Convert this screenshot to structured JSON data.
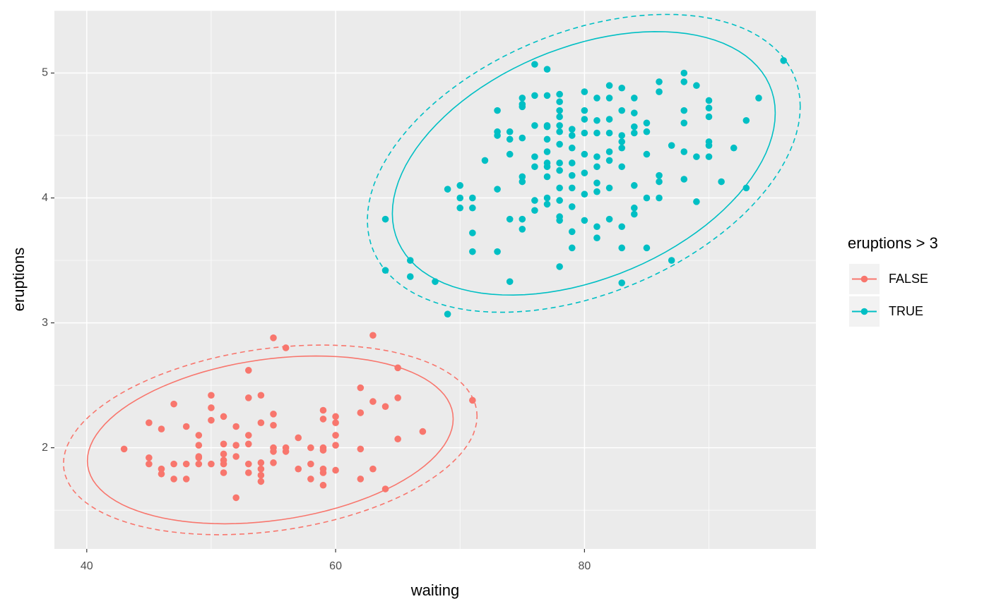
{
  "chart_data": {
    "type": "scatter",
    "x_label": "waiting",
    "y_label": "eruptions",
    "legend_title": "eruptions > 3",
    "xlim": [
      37.4,
      98.6
    ],
    "ylim": [
      1.19,
      5.5
    ],
    "xticks": [
      40,
      60,
      80
    ],
    "yticks": [
      2,
      3,
      4,
      5
    ],
    "grid": true,
    "series": [
      {
        "name": "FALSE",
        "color": "#F8766D",
        "x": [
          43,
          45,
          45,
          45,
          46,
          46,
          46,
          47,
          47,
          47,
          48,
          48,
          48,
          49,
          49,
          49,
          49,
          49,
          50,
          50,
          50,
          50,
          51,
          51,
          51,
          51,
          51,
          51,
          52,
          52,
          52,
          52,
          53,
          53,
          53,
          53,
          53,
          53,
          54,
          54,
          54,
          54,
          54,
          54,
          55,
          55,
          55,
          55,
          55,
          55,
          56,
          56,
          56,
          57,
          57,
          58,
          58,
          58,
          59,
          59,
          59,
          59,
          59,
          59,
          59,
          60,
          60,
          60,
          60,
          60,
          62,
          62,
          62,
          62,
          63,
          63,
          63,
          64,
          64,
          65,
          65,
          65,
          67,
          71
        ],
        "values": [
          1.99,
          2.2,
          1.92,
          1.87,
          2.15,
          1.83,
          1.79,
          2.35,
          1.87,
          1.75,
          2.17,
          1.87,
          1.75,
          2.1,
          2.02,
          1.93,
          1.92,
          1.87,
          2.42,
          2.32,
          2.22,
          1.87,
          2.25,
          2.03,
          1.95,
          1.9,
          1.87,
          1.8,
          2.17,
          2.02,
          1.93,
          1.6,
          2.62,
          2.4,
          2.1,
          2.03,
          1.87,
          1.8,
          2.42,
          2.2,
          1.88,
          1.83,
          1.78,
          1.73,
          2.88,
          2.27,
          2.18,
          2.0,
          1.97,
          1.88,
          2.8,
          2.0,
          1.97,
          2.08,
          1.83,
          2.0,
          1.87,
          1.75,
          2.3,
          2.23,
          2.0,
          1.98,
          1.83,
          1.8,
          1.7,
          2.25,
          2.2,
          2.1,
          2.02,
          1.82,
          2.48,
          2.28,
          1.99,
          1.75,
          2.9,
          2.37,
          1.83,
          2.33,
          1.67,
          2.64,
          2.4,
          2.07,
          2.13,
          2.38
        ]
      },
      {
        "name": "TRUE",
        "color": "#00BFC4",
        "x": [
          64,
          64,
          66,
          66,
          68,
          69,
          69,
          70,
          70,
          70,
          71,
          71,
          71,
          71,
          72,
          73,
          73,
          73,
          73,
          73,
          74,
          74,
          74,
          74,
          74,
          75,
          75,
          75,
          75,
          75,
          75,
          75,
          75,
          76,
          76,
          76,
          76,
          76,
          76,
          76,
          77,
          77,
          77,
          77,
          77,
          77,
          77,
          77,
          77,
          77,
          77,
          78,
          78,
          78,
          78,
          78,
          78,
          78,
          78,
          78,
          78,
          78,
          78,
          78,
          78,
          79,
          79,
          79,
          79,
          79,
          79,
          79,
          79,
          79,
          80,
          80,
          80,
          80,
          80,
          80,
          80,
          80,
          81,
          81,
          81,
          81,
          81,
          81,
          81,
          81,
          81,
          82,
          82,
          82,
          82,
          82,
          82,
          82,
          82,
          83,
          83,
          83,
          83,
          83,
          83,
          83,
          83,
          83,
          84,
          84,
          84,
          84,
          84,
          84,
          84,
          85,
          85,
          85,
          85,
          85,
          86,
          86,
          86,
          86,
          86,
          87,
          87,
          88,
          88,
          88,
          88,
          88,
          88,
          89,
          89,
          89,
          90,
          90,
          90,
          90,
          90,
          90,
          91,
          92,
          93,
          93,
          94,
          96
        ],
        "values": [
          3.83,
          3.42,
          3.5,
          3.37,
          3.33,
          3.07,
          4.07,
          4.1,
          4.0,
          3.92,
          4.0,
          3.92,
          3.72,
          3.57,
          4.3,
          4.7,
          4.53,
          4.5,
          4.07,
          3.57,
          4.53,
          4.47,
          4.35,
          3.83,
          3.33,
          4.8,
          4.75,
          4.73,
          4.48,
          4.17,
          4.13,
          3.83,
          3.75,
          5.07,
          4.82,
          4.58,
          4.33,
          4.25,
          3.98,
          3.9,
          5.03,
          4.82,
          4.58,
          4.57,
          4.47,
          4.37,
          4.28,
          4.25,
          4.17,
          4.0,
          3.95,
          4.83,
          4.77,
          4.7,
          4.65,
          4.58,
          4.53,
          4.43,
          4.28,
          4.22,
          4.08,
          3.98,
          3.85,
          3.82,
          3.45,
          4.55,
          4.5,
          4.4,
          4.28,
          4.18,
          4.08,
          3.93,
          3.73,
          3.6,
          4.85,
          4.7,
          4.63,
          4.52,
          4.35,
          4.2,
          4.03,
          3.82,
          4.8,
          4.62,
          4.52,
          4.33,
          4.25,
          4.12,
          4.05,
          3.77,
          3.68,
          4.9,
          4.8,
          4.63,
          4.52,
          4.37,
          4.3,
          4.08,
          3.83,
          4.88,
          4.7,
          4.5,
          4.45,
          4.4,
          4.25,
          3.77,
          3.6,
          3.32,
          4.8,
          4.68,
          4.57,
          4.52,
          4.1,
          3.92,
          3.87,
          4.6,
          4.53,
          4.35,
          4.0,
          3.6,
          4.93,
          4.85,
          4.18,
          4.13,
          4.0,
          4.42,
          3.5,
          5.0,
          4.93,
          4.7,
          4.6,
          4.37,
          4.15,
          4.9,
          4.33,
          3.97,
          4.78,
          4.72,
          4.65,
          4.45,
          4.42,
          4.33,
          4.13,
          4.4,
          4.62,
          4.08,
          4.8,
          5.1
        ]
      }
    ]
  }
}
